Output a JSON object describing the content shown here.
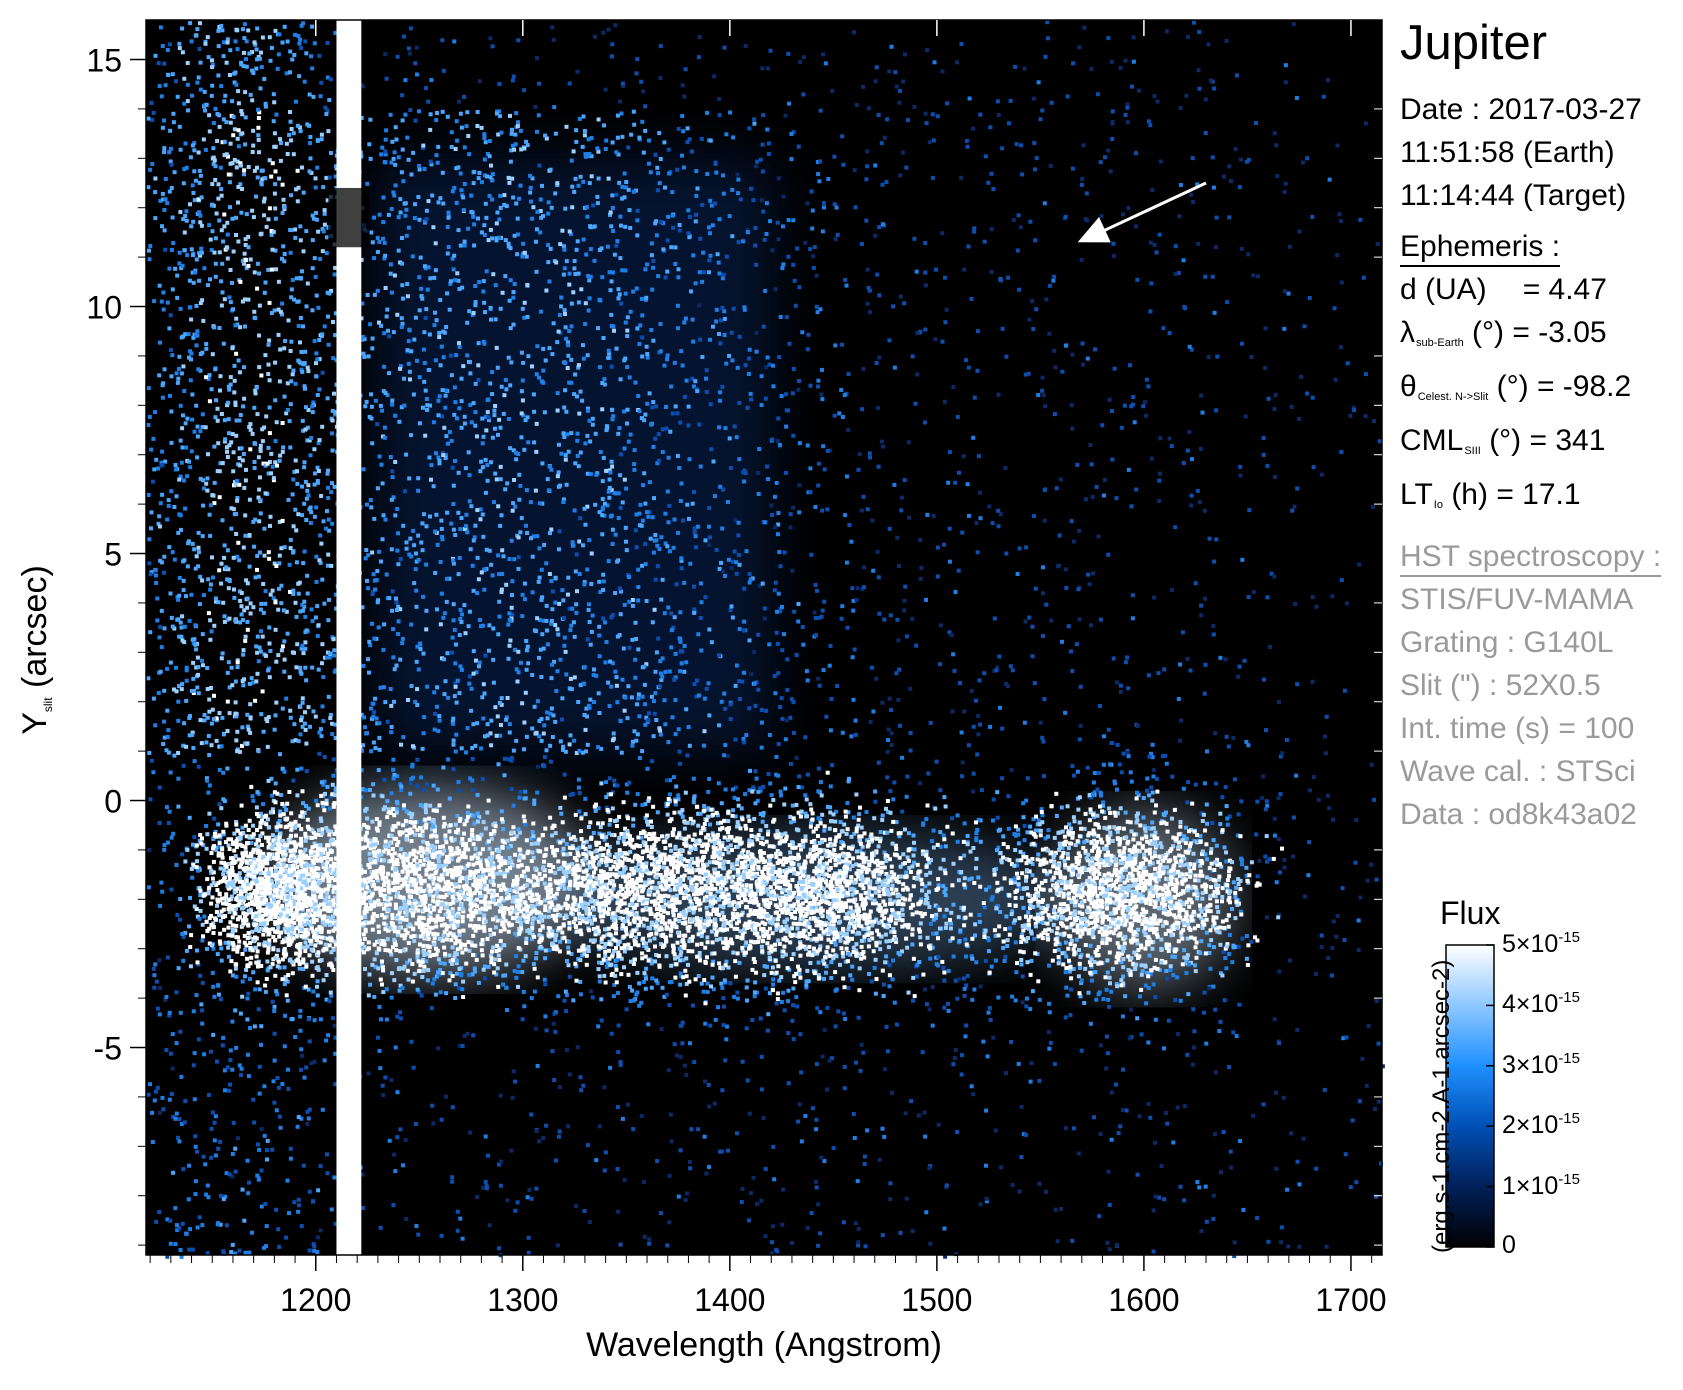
{
  "chart_data": {
    "type": "heatmap",
    "title": "Jupiter",
    "xlabel": "Wavelength (Angstrom)",
    "ylabel": "Y",
    "ylabel_sub": "slit",
    "ylabel_unit": " (arcsec)",
    "xlim": [
      1118,
      1715
    ],
    "ylim": [
      -9.2,
      15.8
    ],
    "x_ticks": [
      1200,
      1300,
      1400,
      1500,
      1600,
      1700
    ],
    "x_tick_labels": [
      "1200",
      "1300",
      "1400",
      "1500",
      "1600",
      "1700"
    ],
    "y_ticks": [
      15,
      10,
      5,
      0,
      -5
    ],
    "y_tick_labels": [
      "15",
      "10",
      "5",
      "0",
      "-5"
    ],
    "features": [
      {
        "name": "Lyman-alpha band",
        "x_range": [
          1210,
          1222
        ],
        "y_range": [
          -9.2,
          15.8
        ]
      },
      {
        "name": "equatorial emission band",
        "x_range": [
          1160,
          1650
        ],
        "y_center": -1.8
      },
      {
        "name": "arrow annotation",
        "from": [
          1630,
          12.5
        ],
        "to": [
          1568,
          11.3
        ]
      }
    ],
    "colorbar": {
      "title": "Flux",
      "unit": "(erg.s-1.cm-2.A-1.arcsec-2)",
      "range": [
        0,
        5e-15
      ],
      "ticks": [
        {
          "value": 0,
          "mant": "0",
          "exp": ""
        },
        {
          "value": 1e-15,
          "mant": "1×10",
          "exp": "-15"
        },
        {
          "value": 2e-15,
          "mant": "2×10",
          "exp": "-15"
        },
        {
          "value": 3e-15,
          "mant": "3×10",
          "exp": "-15"
        },
        {
          "value": 4e-15,
          "mant": "4×10",
          "exp": "-15"
        },
        {
          "value": 5e-15,
          "mant": "5×10",
          "exp": "-15"
        }
      ],
      "colors": [
        "#000000",
        "#00205a",
        "#0050b4",
        "#1e90ff",
        "#8ec8ff",
        "#ffffff"
      ]
    }
  },
  "info": {
    "title": "Jupiter",
    "date_line": "Date : 2017-03-27",
    "earth_time": "11:51:58 (Earth)",
    "target_time": "11:14:44 (Target)",
    "ephemeris_header": "Ephemeris :",
    "d_label": "d (UA)",
    "d_value": "= 4.47",
    "lambda_symbol": "λ",
    "lambda_sub": "sub-Earth",
    "lambda_rest": " (°)  = -3.05",
    "theta_symbol": "θ",
    "theta_sub": "Celest. N->Slit",
    "theta_rest": " (°) = -98.2",
    "cml_symbol": "CML",
    "cml_sub": "SIII",
    "cml_rest": " (°) = 341",
    "lt_symbol": "LT",
    "lt_sub": "Io",
    "lt_rest": " (h) = 17.1",
    "hst_header": "HST spectroscopy :",
    "instrument": "STIS/FUV-MAMA",
    "grating": "Grating : G140L",
    "slit": "Slit (\") : 52X0.5",
    "int_time": "Int. time (s) = 100",
    "wave_cal": "Wave cal. : STSci",
    "data_id": "Data : od8k43a02"
  }
}
